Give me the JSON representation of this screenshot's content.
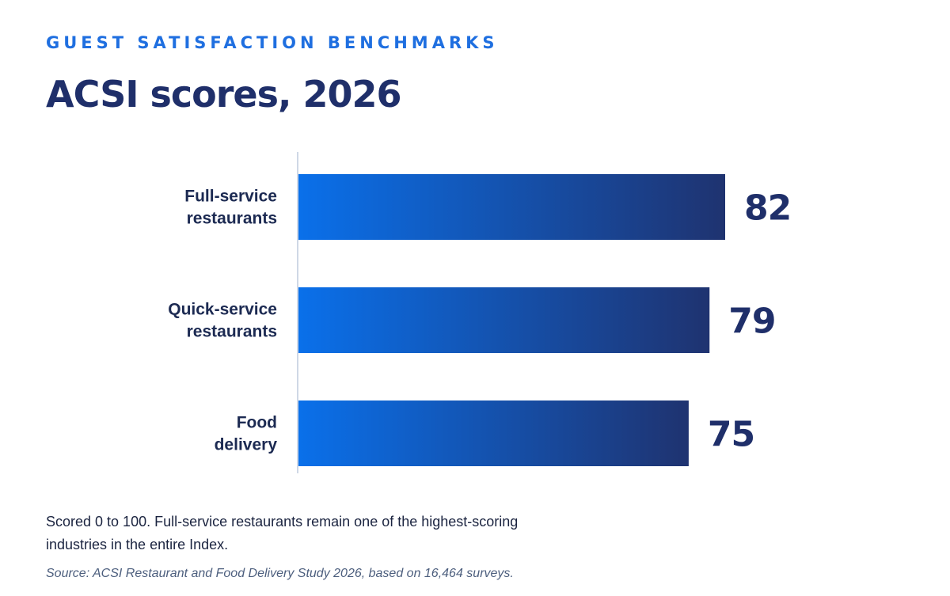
{
  "header": {
    "kicker": "GUEST SATISFACTION BENCHMARKS",
    "title": "ACSI scores, 2026"
  },
  "chart_data": {
    "type": "bar",
    "orientation": "horizontal",
    "categories": [
      [
        "Full-service",
        "restaurants"
      ],
      [
        "Quick-service",
        "restaurants"
      ],
      [
        "Food",
        "delivery"
      ]
    ],
    "values": [
      82,
      79,
      75
    ],
    "title": "ACSI scores, 2026",
    "xlabel": "",
    "ylabel": "",
    "xlim": [
      0,
      100
    ],
    "grid": false,
    "data_labels": true
  },
  "colors": {
    "bar_start": "#0a70ea",
    "bar_end": "#1f3370",
    "label_text": "#1c2a52",
    "value_text": "#1f2f6a",
    "axis_line": "#cfd8e6"
  },
  "footer": {
    "note": "Scored 0 to 100. Full-service restaurants remain one of the highest-scoring industries in the entire Index.",
    "source": "Source: ACSI Restaurant and Food Delivery Study 2026, based on 16,464 surveys."
  }
}
